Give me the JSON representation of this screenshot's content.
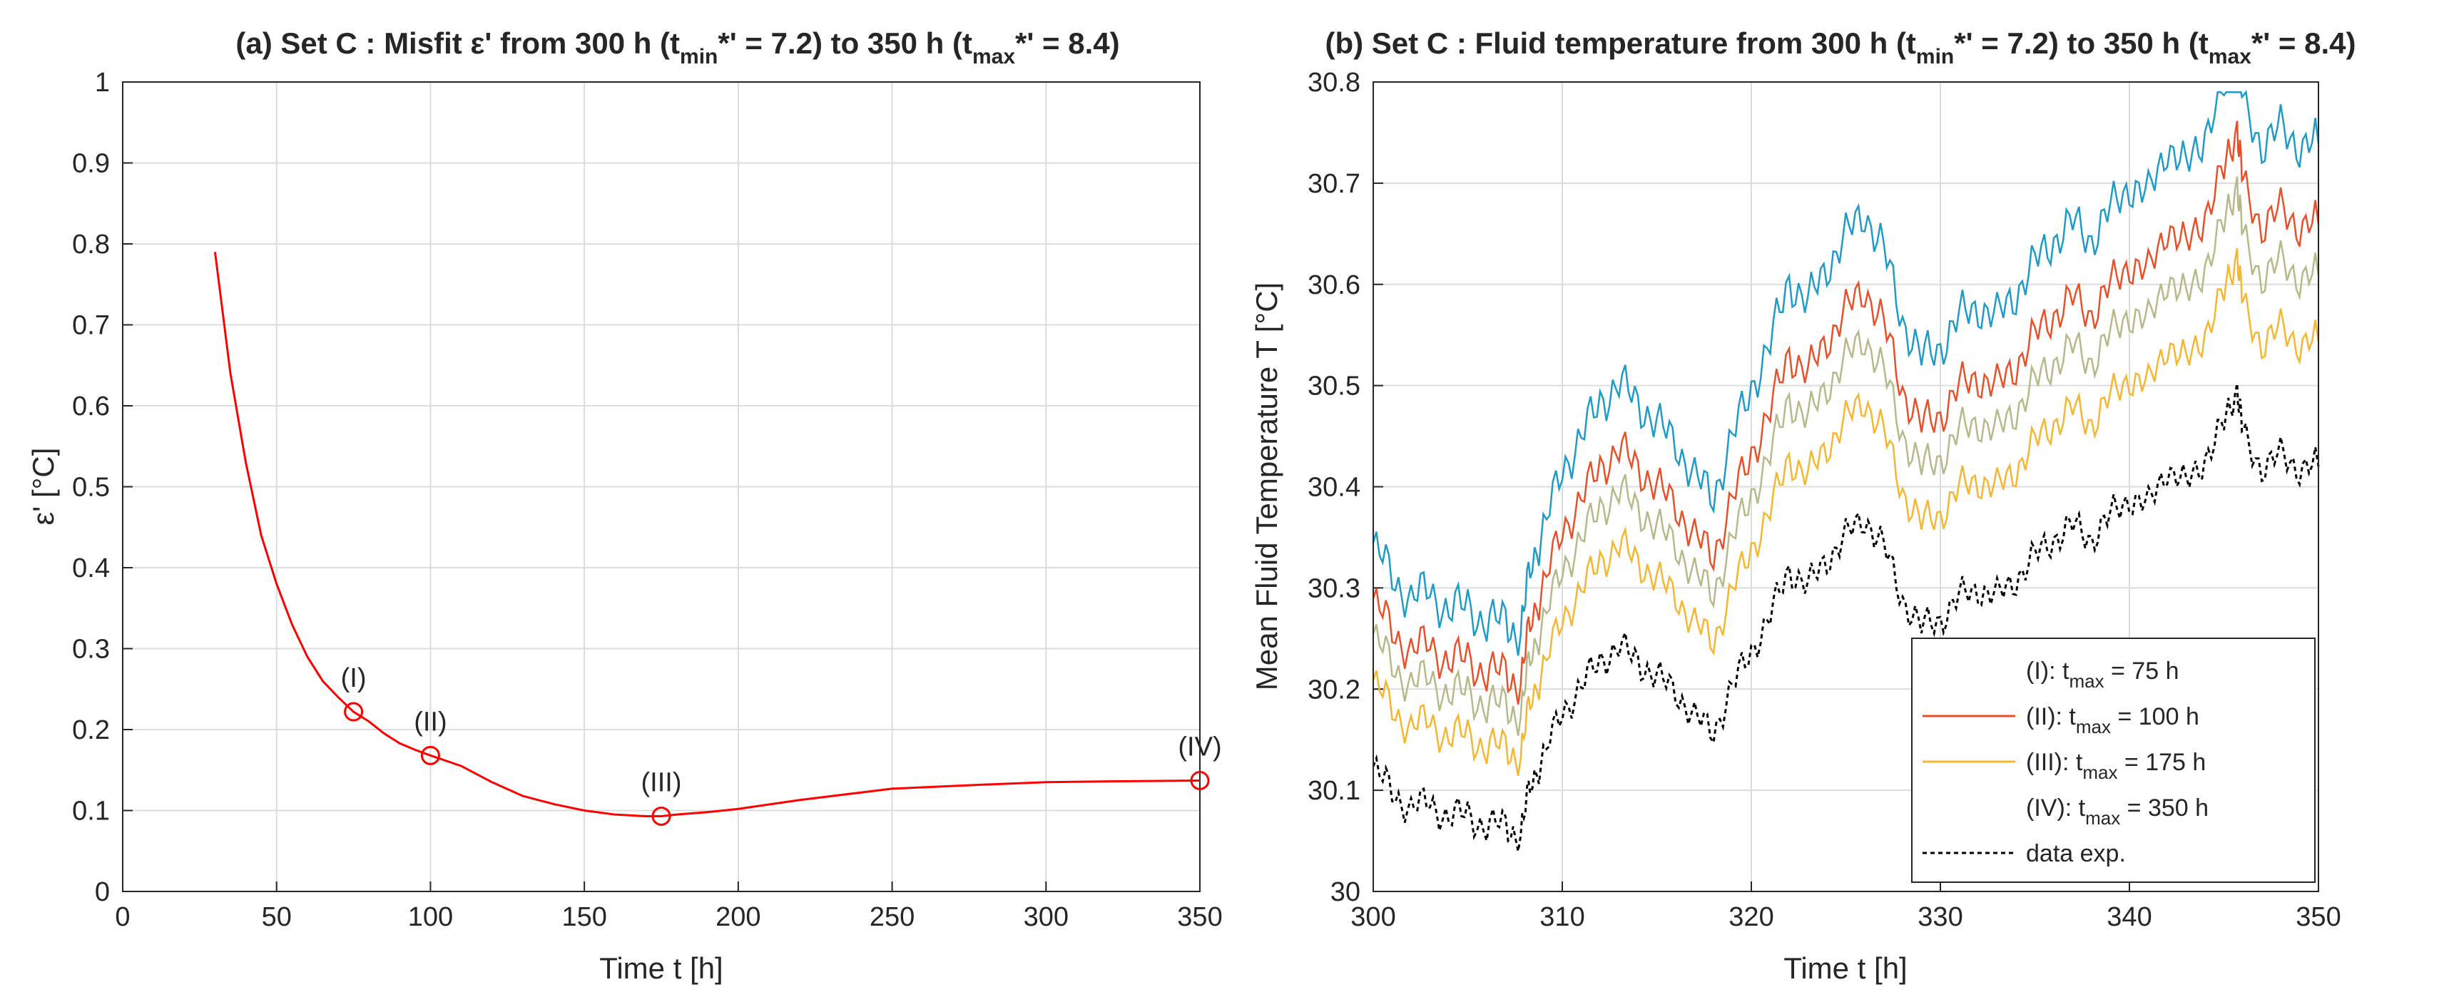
{
  "chart_data": [
    {
      "type": "line",
      "title": "(a) Set C : Misfit ε' from 300 h (tmin*' = 7.2) to 350 h (tmax*' = 8.4)",
      "title_parts": {
        "a": "(a) Set C : Misfit ε' from 300 h (t",
        "b": "min",
        "c": "*' = 7.2) to 350 h (t",
        "d": "max",
        "e": "*' = 8.4)"
      },
      "xlabel": "Time t [h]",
      "ylabel": "ε' [°C]",
      "xlim": [
        0,
        350
      ],
      "ylim": [
        0,
        1
      ],
      "xticks": [
        0,
        50,
        100,
        150,
        200,
        250,
        300,
        350
      ],
      "yticks": [
        0,
        0.1,
        0.2,
        0.3,
        0.4,
        0.5,
        0.6,
        0.7,
        0.8,
        0.9,
        1
      ],
      "ytick_labels": [
        "0",
        "0.1",
        "0.2",
        "0.3",
        "0.4",
        "0.5",
        "0.6",
        "0.7",
        "0.8",
        "0.9",
        "1"
      ],
      "grid": true,
      "series": [
        {
          "name": "misfit",
          "color": "#ff0000",
          "x": [
            30,
            35,
            40,
            45,
            50,
            55,
            60,
            65,
            70,
            75,
            80,
            85,
            90,
            95,
            100,
            110,
            120,
            130,
            140,
            150,
            160,
            170,
            175,
            180,
            190,
            200,
            220,
            250,
            280,
            300,
            320,
            350
          ],
          "y": [
            0.79,
            0.64,
            0.53,
            0.44,
            0.38,
            0.33,
            0.29,
            0.26,
            0.24,
            0.222,
            0.21,
            0.195,
            0.183,
            0.175,
            0.168,
            0.155,
            0.135,
            0.118,
            0.108,
            0.1,
            0.095,
            0.093,
            0.093,
            0.095,
            0.098,
            0.102,
            0.113,
            0.127,
            0.132,
            0.135,
            0.136,
            0.137
          ]
        }
      ],
      "markers": [
        {
          "label": "(I)",
          "x": 75,
          "y": 0.222
        },
        {
          "label": "(II)",
          "x": 100,
          "y": 0.168
        },
        {
          "label": "(III)",
          "x": 175,
          "y": 0.093
        },
        {
          "label": "(IV)",
          "x": 350,
          "y": 0.137
        }
      ]
    },
    {
      "type": "line",
      "title": "(b) Set C : Fluid temperature from 300 h (tmin*' = 7.2) to 350 h (tmax*' = 8.4)",
      "title_parts": {
        "a": "(b) Set C : Fluid temperature from 300 h (t",
        "b": "min",
        "c": "*' = 7.2) to 350 h (t",
        "d": "max",
        "e": "*' = 8.4)"
      },
      "xlabel": "Time t [h]",
      "ylabel": "Mean Fluid Temperature T [°C]",
      "xlim": [
        300,
        350
      ],
      "ylim": [
        30,
        30.8
      ],
      "xticks": [
        300,
        310,
        320,
        330,
        340,
        350
      ],
      "yticks": [
        30,
        30.1,
        30.2,
        30.3,
        30.4,
        30.5,
        30.6,
        30.7,
        30.8
      ],
      "ytick_labels": [
        "30",
        "30.1",
        "30.2",
        "30.3",
        "30.4",
        "30.5",
        "30.6",
        "30.7",
        "30.8"
      ],
      "grid": true,
      "legend_position": "bottom-right",
      "series": [
        {
          "name": "(I): tmax = 75 h",
          "legend_parts": {
            "a": "(I): t",
            "b": "max",
            "c": " = 75 h"
          },
          "color": "#1f9bc7",
          "dashed": false,
          "offset": 0.22
        },
        {
          "name": "(II): tmax = 100 h",
          "legend_parts": {
            "a": "(II): t",
            "b": "max",
            "c": " = 100 h"
          },
          "color": "#e8502a",
          "dashed": false,
          "offset": 0.165
        },
        {
          "name": "(III): tmax = 175 h",
          "legend_parts": {
            "a": "(III): t",
            "b": "max",
            "c": " = 175 h"
          },
          "color": "#f5b731",
          "dashed": false,
          "offset": 0.085
        },
        {
          "name": "(IV): tmax = 350 h",
          "legend_parts": {
            "a": "(IV): t",
            "b": "max",
            "c": " = 350 h"
          },
          "color": "#b7b98a",
          "dashed": false,
          "offset": 0.13
        },
        {
          "name": "data exp.",
          "legend_parts": {
            "a": "data exp.",
            "b": "",
            "c": ""
          },
          "color": "#000000",
          "dashed": true,
          "offset": 0.0
        }
      ],
      "base_curve": {
        "x": [
          300,
          301,
          302,
          303,
          304,
          305,
          306,
          307,
          307.8,
          308.3,
          309,
          310,
          311,
          312,
          313,
          314,
          315,
          316,
          317,
          318,
          319,
          320,
          321,
          322,
          323,
          324,
          325,
          326,
          327,
          328,
          329,
          330,
          331,
          332,
          333,
          334,
          335,
          336,
          337,
          338,
          339,
          340,
          341,
          342,
          343,
          344,
          345,
          345.7,
          346,
          347,
          348,
          349,
          350
        ],
        "y": [
          30.12,
          30.1,
          30.08,
          30.09,
          30.07,
          30.08,
          30.06,
          30.07,
          30.05,
          30.11,
          30.13,
          30.18,
          30.2,
          30.23,
          30.24,
          30.23,
          30.21,
          30.2,
          30.17,
          30.16,
          30.2,
          30.24,
          30.27,
          30.32,
          30.3,
          30.33,
          30.35,
          30.37,
          30.34,
          30.29,
          30.26,
          30.27,
          30.29,
          30.3,
          30.29,
          30.31,
          30.33,
          30.35,
          30.36,
          30.35,
          30.37,
          30.39,
          30.38,
          30.42,
          30.4,
          30.43,
          30.46,
          30.5,
          30.45,
          30.42,
          30.43,
          30.42,
          30.42
        ]
      }
    }
  ]
}
